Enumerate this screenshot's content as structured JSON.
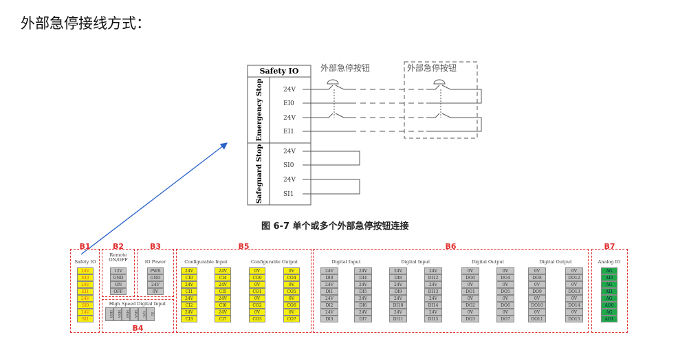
{
  "heading": "外部急停接线方式：",
  "caption": "图 6-7  单个或多个外部急停按钮连接",
  "safety_io": {
    "title": "Safety IO",
    "emergency_label": "Emergency Stop",
    "safeguard_label": "Safeguard Stop",
    "emergency_pins": [
      "24V",
      "EI0",
      "24V",
      "EI1"
    ],
    "safeguard_pins": [
      "24V",
      "SI0",
      "24V",
      "SI1"
    ],
    "button_label_1": "外部急停按钮",
    "button_label_2": "外部急停按钮"
  },
  "panel": {
    "B1": {
      "label": "B1",
      "title": "Safety IO",
      "pins": [
        "24V",
        "EI0",
        "24V",
        "EI1",
        "24V",
        "SI0",
        "24V",
        "SI1"
      ]
    },
    "B2": {
      "label": "B2",
      "title": "Remote ON/OFF",
      "pins": [
        "12V",
        "GND",
        "ON",
        "OFF"
      ]
    },
    "B3": {
      "label": "B3",
      "title": "IO Power",
      "pins": [
        "PWR",
        "GND",
        "24V",
        "0V"
      ]
    },
    "B4": {
      "label": "B4",
      "title": "High Speed Digital Input",
      "pins": [
        "HSB",
        "HSA",
        "HSB",
        "HSA",
        "N/C",
        "IO"
      ]
    },
    "B5": {
      "label": "B5",
      "groups": [
        {
          "title": "Configurable Input",
          "cols": [
            [
              "24V",
              "CI0",
              "24V",
              "CI1",
              "24V",
              "CI2",
              "24V",
              "CI3"
            ],
            [
              "24V",
              "CI4",
              "24V",
              "CI5",
              "24V",
              "CI6",
              "24V",
              "CI7"
            ]
          ]
        },
        {
          "title": "Configurable Output",
          "cols": [
            [
              "0V",
              "CO0",
              "0V",
              "CO1",
              "0V",
              "CO2",
              "0V",
              "CO3"
            ],
            [
              "0V",
              "CO4",
              "0V",
              "CO5",
              "0V",
              "CO6",
              "0V",
              "CO7"
            ]
          ]
        }
      ]
    },
    "B6": {
      "label": "B6",
      "groups": [
        {
          "title": "Digital Input",
          "cols": [
            [
              "24V",
              "DI0",
              "24V",
              "DI1",
              "24V",
              "DI2",
              "24V",
              "DI3"
            ],
            [
              "24V",
              "DI4",
              "24V",
              "DI5",
              "24V",
              "DI6",
              "24V",
              "DI7"
            ]
          ]
        },
        {
          "title": "Digital Input",
          "cols": [
            [
              "24V",
              "DI8",
              "24V",
              "DI9",
              "24V",
              "DI10",
              "24V",
              "DI11"
            ],
            [
              "24V",
              "DI12",
              "24V",
              "DI13",
              "24V",
              "DI14",
              "24V",
              "DI15"
            ]
          ]
        },
        {
          "title": "Digital Output",
          "cols": [
            [
              "0V",
              "DO0",
              "0V",
              "DO1",
              "0V",
              "DO2",
              "0V",
              "DO3"
            ],
            [
              "0V",
              "DO4",
              "0V",
              "DO5",
              "0V",
              "DO6",
              "0V",
              "DO7"
            ]
          ]
        },
        {
          "title": "Digital Output",
          "cols": [
            [
              "0V",
              "DO8",
              "0V",
              "DO9",
              "0V",
              "DO10",
              "0V",
              "DO11"
            ],
            [
              "0V",
              "DO12",
              "0V",
              "DO13",
              "0V",
              "DO14",
              "0V",
              "DO15"
            ]
          ]
        }
      ]
    },
    "B7": {
      "label": "B7",
      "title": "Analog IO",
      "pins": [
        "AG",
        "AI0",
        "AG",
        "AI1",
        "AG",
        "AO0",
        "AG",
        "AO1"
      ]
    }
  },
  "colors": {
    "block_border": "#e03030",
    "terminal_yellow": "#f5ee10",
    "terminal_gray": "#c4c4c4",
    "terminal_green": "#1faa4a",
    "arrow": "#2a62c8"
  }
}
